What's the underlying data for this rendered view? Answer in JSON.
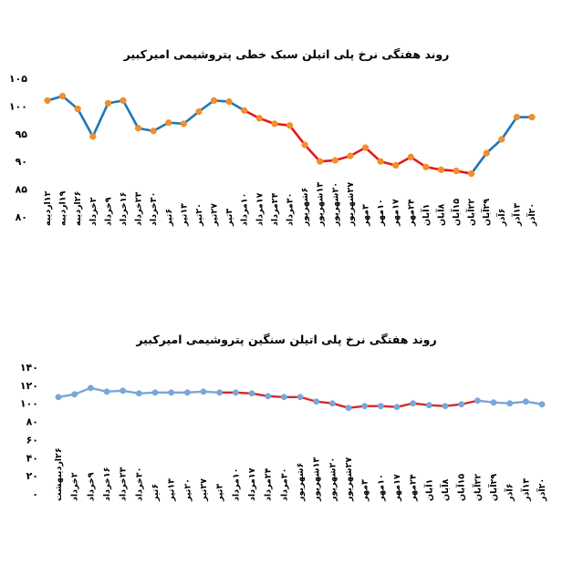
{
  "chart_data": [
    {
      "type": "line",
      "title": "روند هفتگی نرخ پلی اتیلن سبک خطی پتروشیمی امیرکبیر",
      "ylim": [
        80,
        105
      ],
      "y_ticks": [
        "۸۰",
        "۸۵",
        "۹۰",
        "۹۵",
        "۱۰۰",
        "۱۰۵"
      ],
      "grid": false,
      "categories": [
        "۱۲اردیبه",
        "۱۹اردیبه",
        "۲۶اردیبه",
        "۲خرداد",
        "۹خرداد",
        "۱۶خرداد",
        "۲۳خرداد",
        "۳۰خرداد",
        "۶تیر",
        "۱۳تیر",
        "۲۰تیر",
        "۲۷تیر",
        "۳تیر",
        "۱۰مرداد",
        "۱۷مرداد",
        "۲۴مرداد",
        "۳۰مرداد",
        "۶شهریور",
        "۱۳شهریور",
        "۲۰شهریور",
        "۲۷شهریور",
        "۳مهر",
        "۱۰مهر",
        "۱۷مهر",
        "۲۴مهر",
        "۱آبان",
        "۸آبان",
        "۱۵آبان",
        "۲۲آبان",
        "۲۹آبان",
        "۶آذر",
        "۱۳آذر",
        "۲۰آذر"
      ],
      "series": [
        {
          "line_colors": [
            "#1f77b4",
            "#e31a1c"
          ],
          "marker_color": "#f28e2b",
          "values": [
            101,
            101.8,
            99.5,
            94.5,
            100.5,
            101,
            96,
            95.5,
            97,
            96.8,
            99,
            101,
            100.8,
            99.2,
            97.8,
            96.8,
            96.5,
            93,
            90,
            90.2,
            91,
            92.5,
            90,
            89.3,
            90.8,
            89,
            88.5,
            88.3,
            87.8,
            91.5,
            94,
            98,
            98
          ]
        }
      ]
    },
    {
      "type": "line",
      "title": "روند هفتگی نرخ پلی اتیلن سنگین پتروشیمی امیرکبیر",
      "ylim": [
        0,
        140
      ],
      "y_ticks": [
        "۰",
        "۲۰",
        "۴۰",
        "۶۰",
        "۸۰",
        "۱۰۰",
        "۱۲۰",
        "۱۴۰"
      ],
      "grid": false,
      "categories": [
        "۲۶اردیبهشت",
        "۲خرداد",
        "۹خرداد",
        "۱۶خرداد",
        "۲۳خرداد",
        "۳۰خرداد",
        "۶تیر",
        "۱۳تیر",
        "۲۰تیر",
        "۲۷تیر",
        "۳تیر",
        "۱۰مرداد",
        "۱۷مرداد",
        "۲۴مرداد",
        "۳۰مرداد",
        "۶شهریور",
        "۱۳شهریور",
        "۲۰شهریور",
        "۲۷شهریور",
        "۳مهر",
        "۱۰مهر",
        "۱۷مهر",
        "۲۴مهر",
        "۱آبان",
        "۸آبان",
        "۱۵آبان",
        "۲۲آبان",
        "۲۹آبان",
        "۶آذر",
        "۱۳آذر",
        "۲۰آذر"
      ],
      "series": [
        {
          "line_colors": [
            "#7aa6d8",
            "#d62728"
          ],
          "marker_color": "#7aa6d8",
          "values": [
            107,
            110,
            117,
            113,
            114,
            111,
            112,
            112,
            112,
            113,
            112,
            112,
            111,
            108,
            107,
            107,
            102,
            100,
            95,
            97,
            97,
            96,
            100,
            98,
            97,
            99,
            103,
            101,
            100,
            102,
            99
          ]
        }
      ]
    }
  ]
}
